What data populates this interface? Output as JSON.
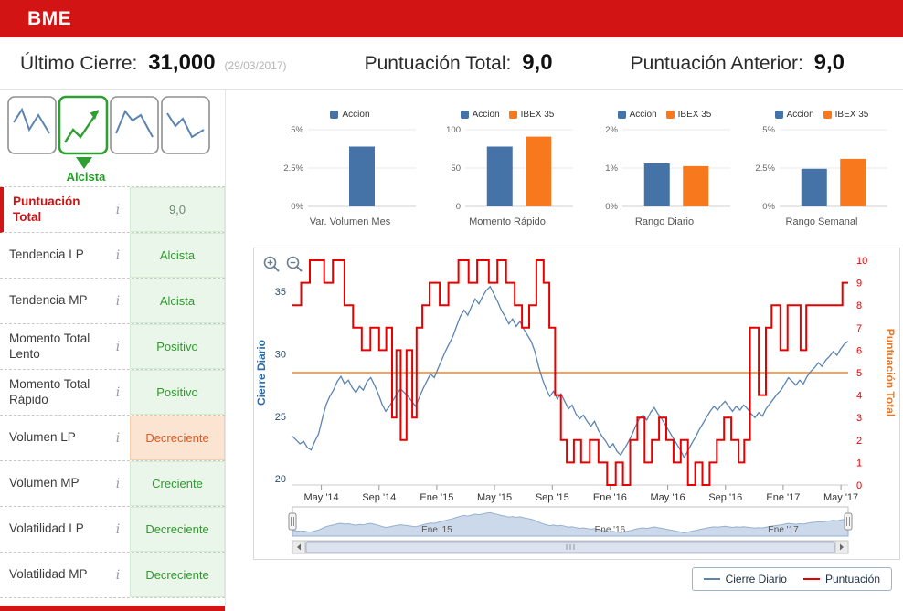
{
  "header": {
    "brand": "BME"
  },
  "stats": {
    "last_close_label": "Último Cierre:",
    "last_close_value": "31,000",
    "last_close_date": "(29/03/2017)",
    "total_score_label": "Puntuación Total:",
    "total_score_value": "9,0",
    "prev_score_label": "Puntuación Anterior:",
    "prev_score_value": "9,0"
  },
  "trend_widget": {
    "label": "Alcista"
  },
  "colors": {
    "brand_red": "#d21414",
    "positive_green": "#2e9b2e",
    "negative_orange": "#e2571f",
    "bar_blue": "#4572a7",
    "bar_orange": "#f8791d",
    "price_blue": "#5b84b1",
    "score_red": "#e60000",
    "threshold_orange": "#f7a35c"
  },
  "indicators": [
    {
      "label": "Puntuación Total",
      "info": "i",
      "value": "9,0",
      "state": "good",
      "accent": true,
      "muted": true
    },
    {
      "label": "Tendencia LP",
      "info": "i",
      "value": "Alcista",
      "state": "good"
    },
    {
      "label": "Tendencia MP",
      "info": "i",
      "value": "Alcista",
      "state": "good"
    },
    {
      "label": "Momento Total Lento",
      "info": "i",
      "value": "Positivo",
      "state": "good"
    },
    {
      "label": "Momento Total Rápido",
      "info": "i",
      "value": "Positivo",
      "state": "good"
    },
    {
      "label": "Volumen LP",
      "info": "i",
      "value": "Decreciente",
      "state": "bad"
    },
    {
      "label": "Volumen MP",
      "info": "i",
      "value": "Creciente",
      "state": "good"
    },
    {
      "label": "Volatilidad LP",
      "info": "i",
      "value": "Decreciente",
      "state": "good"
    },
    {
      "label": "Volatilidad MP",
      "info": "i",
      "value": "Decreciente",
      "state": "good"
    }
  ],
  "minicharts": [
    {
      "type": "bar",
      "title": "Var. Volumen Mes",
      "y_ticks": [
        "0%",
        "2.5%",
        "5%"
      ],
      "ymax": 5,
      "series": [
        {
          "name": "Accion",
          "color": "#4572a7",
          "value": 3.9
        }
      ]
    },
    {
      "type": "bar",
      "title": "Momento Rápido",
      "y_ticks": [
        "0",
        "50",
        "100"
      ],
      "ymax": 100,
      "series": [
        {
          "name": "Accion",
          "color": "#4572a7",
          "value": 78
        },
        {
          "name": "IBEX 35",
          "color": "#f8791d",
          "value": 91
        }
      ]
    },
    {
      "type": "bar",
      "title": "Rango Diario",
      "y_ticks": [
        "0%",
        "1%",
        "2%"
      ],
      "ymax": 2,
      "series": [
        {
          "name": "Accion",
          "color": "#4572a7",
          "value": 1.12
        },
        {
          "name": "IBEX 35",
          "color": "#f8791d",
          "value": 1.05
        }
      ]
    },
    {
      "type": "bar",
      "title": "Rango Semanal",
      "y_ticks": [
        "0%",
        "2.5%",
        "5%"
      ],
      "ymax": 5,
      "series": [
        {
          "name": "Accion",
          "color": "#4572a7",
          "value": 2.45
        },
        {
          "name": "IBEX 35",
          "color": "#f8791d",
          "value": 3.1
        }
      ]
    }
  ],
  "chart_data": {
    "type": "line",
    "x_axis": {
      "labels": [
        "May '14",
        "Sep '14",
        "Ene '15",
        "May '15",
        "Sep '15",
        "Ene '16",
        "May '16",
        "Sep '16",
        "Ene '17",
        "May '17"
      ],
      "label_months": [
        2,
        6,
        10,
        14,
        18,
        22,
        26,
        30,
        34,
        38
      ],
      "total_months": 38.5
    },
    "left_axis": {
      "title": "Cierre Diario",
      "ticks": [
        20,
        25,
        30,
        35
      ],
      "min": 19.5,
      "max": 37.5,
      "color": "#274b6d",
      "title_color": "#2c6ca9"
    },
    "right_axis": {
      "title": "Puntuación Total",
      "ticks": [
        0,
        1,
        2,
        3,
        4,
        5,
        6,
        7,
        8,
        9,
        10
      ],
      "min": 0,
      "max": 10,
      "color": "#e60000",
      "title_color": "#e87722"
    },
    "threshold_line": {
      "value": 5,
      "axis": "right",
      "color": "#f7a35c"
    },
    "series": [
      {
        "name": "Cierre Diario",
        "type": "line",
        "axis": "left",
        "color": "#5b84b1",
        "values": [
          23.4,
          23.1,
          22.8,
          23.0,
          22.5,
          22.3,
          23.0,
          23.6,
          24.8,
          25.9,
          26.6,
          27.1,
          27.8,
          28.2,
          27.6,
          27.9,
          27.3,
          26.9,
          27.4,
          27.1,
          27.8,
          28.1,
          27.5,
          26.8,
          26.0,
          25.4,
          25.8,
          26.3,
          26.8,
          27.2,
          26.9,
          26.6,
          26.2,
          25.8,
          26.5,
          27.2,
          27.8,
          28.4,
          28.1,
          28.8,
          29.5,
          30.2,
          30.8,
          31.4,
          32.2,
          33.0,
          33.5,
          33.1,
          33.8,
          34.4,
          34.0,
          34.6,
          35.1,
          35.4,
          34.8,
          34.2,
          33.5,
          33.0,
          32.4,
          32.8,
          32.2,
          32.6,
          32.0,
          31.5,
          31.0,
          30.2,
          29.0,
          28.0,
          27.2,
          26.6,
          27.0,
          26.4,
          26.8,
          26.2,
          25.6,
          25.9,
          25.2,
          24.8,
          25.1,
          24.6,
          24.2,
          24.6,
          23.9,
          23.4,
          23.0,
          22.5,
          22.8,
          22.2,
          21.9,
          22.4,
          22.9,
          23.5,
          24.2,
          24.8,
          25.1,
          24.7,
          25.3,
          25.7,
          25.2,
          24.8,
          24.3,
          23.8,
          23.3,
          22.8,
          22.3,
          21.7,
          22.2,
          22.8,
          23.3,
          23.9,
          24.4,
          24.9,
          25.4,
          25.8,
          25.5,
          25.9,
          26.2,
          25.8,
          25.4,
          25.8,
          25.5,
          25.9,
          25.6,
          25.2,
          24.9,
          25.3,
          25.0,
          25.6,
          26.0,
          26.4,
          26.8,
          27.1,
          27.6,
          28.1,
          27.8,
          27.5,
          27.9,
          27.6,
          28.2,
          28.6,
          28.9,
          29.3,
          29.0,
          29.5,
          29.8,
          30.2,
          29.9,
          30.4,
          30.8,
          31.0
        ]
      },
      {
        "name": "Puntuación",
        "type": "step",
        "axis": "right",
        "color": "#e60000",
        "points": [
          [
            0,
            8
          ],
          [
            0.6,
            9
          ],
          [
            1.2,
            10
          ],
          [
            2.2,
            9
          ],
          [
            2.8,
            10
          ],
          [
            3.6,
            8
          ],
          [
            4.2,
            7
          ],
          [
            4.8,
            6
          ],
          [
            5.4,
            7
          ],
          [
            6.0,
            6
          ],
          [
            6.5,
            7
          ],
          [
            6.9,
            3
          ],
          [
            7.2,
            6
          ],
          [
            7.5,
            2
          ],
          [
            7.9,
            6
          ],
          [
            8.3,
            3
          ],
          [
            8.6,
            7
          ],
          [
            9.0,
            8
          ],
          [
            9.5,
            9
          ],
          [
            10.2,
            8
          ],
          [
            10.8,
            9
          ],
          [
            11.5,
            10
          ],
          [
            12.2,
            9
          ],
          [
            12.8,
            10
          ],
          [
            13.6,
            9
          ],
          [
            14.2,
            10
          ],
          [
            14.8,
            9
          ],
          [
            15.4,
            8
          ],
          [
            15.9,
            7
          ],
          [
            16.4,
            8
          ],
          [
            16.9,
            10
          ],
          [
            17.4,
            9
          ],
          [
            17.8,
            7
          ],
          [
            18.2,
            4
          ],
          [
            18.6,
            2
          ],
          [
            19.0,
            1
          ],
          [
            19.5,
            2
          ],
          [
            20.0,
            1
          ],
          [
            20.6,
            2
          ],
          [
            21.2,
            1
          ],
          [
            21.8,
            0
          ],
          [
            22.4,
            1
          ],
          [
            22.9,
            0
          ],
          [
            23.4,
            2
          ],
          [
            23.9,
            3
          ],
          [
            24.4,
            1
          ],
          [
            24.9,
            2
          ],
          [
            25.4,
            3
          ],
          [
            25.9,
            2
          ],
          [
            26.4,
            1
          ],
          [
            26.9,
            2
          ],
          [
            27.4,
            0
          ],
          [
            27.9,
            1
          ],
          [
            28.4,
            0
          ],
          [
            28.9,
            1
          ],
          [
            29.4,
            2
          ],
          [
            29.9,
            3
          ],
          [
            30.4,
            2
          ],
          [
            30.9,
            1
          ],
          [
            31.3,
            2
          ],
          [
            31.7,
            7
          ],
          [
            32.3,
            4
          ],
          [
            32.8,
            7
          ],
          [
            33.2,
            8
          ],
          [
            33.8,
            6
          ],
          [
            34.3,
            8
          ],
          [
            35.2,
            6
          ],
          [
            35.6,
            8
          ],
          [
            37.6,
            8
          ],
          [
            38.1,
            9
          ]
        ]
      }
    ],
    "navigator": {
      "labels": [
        "Ene '15",
        "Ene '16",
        "Ene '17"
      ],
      "label_months": [
        10,
        22,
        34
      ]
    },
    "legend": [
      {
        "label": "Cierre Diario",
        "color": "#5b84b1"
      },
      {
        "label": "Puntuación",
        "color": "#e60000"
      }
    ]
  }
}
